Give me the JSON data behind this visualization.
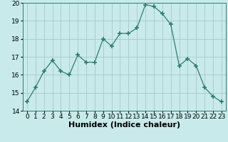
{
  "x": [
    0,
    1,
    2,
    3,
    4,
    5,
    6,
    7,
    8,
    9,
    10,
    11,
    12,
    13,
    14,
    15,
    16,
    17,
    18,
    19,
    20,
    21,
    22,
    23
  ],
  "y": [
    14.5,
    15.3,
    16.2,
    16.8,
    16.2,
    16.0,
    17.1,
    16.7,
    16.7,
    18.0,
    17.6,
    18.3,
    18.3,
    18.6,
    19.9,
    19.8,
    19.4,
    18.8,
    16.5,
    16.9,
    16.5,
    15.3,
    14.8,
    14.5
  ],
  "line_color": "#2d7d6f",
  "marker": "+",
  "marker_size": 5,
  "bg_color": "#c8eaea",
  "grid_color": "#aac8c8",
  "xlabel": "Humidex (Indice chaleur)",
  "xlabel_fontsize": 8,
  "tick_fontsize": 6.5,
  "ylim": [
    14,
    20
  ],
  "yticks": [
    14,
    15,
    16,
    17,
    18,
    19,
    20
  ],
  "xlim": [
    -0.5,
    23.5
  ]
}
